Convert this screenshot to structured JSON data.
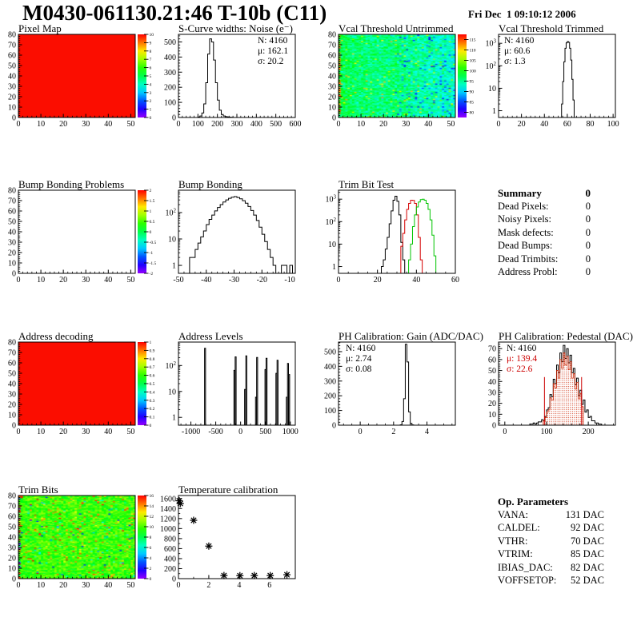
{
  "header": {
    "title": "M0430-061130.21:46 T-10b (C11)",
    "timestamp": "Fri Dec  1 09:10:12 2006"
  },
  "summary": {
    "title": "Summary",
    "total": "0",
    "rows": [
      {
        "label": "Dead Pixels:",
        "value": "0"
      },
      {
        "label": "Noisy Pixels:",
        "value": "0"
      },
      {
        "label": "Mask defects:",
        "value": "0"
      },
      {
        "label": "Dead Bumps:",
        "value": "0"
      },
      {
        "label": "Dead Trimbits:",
        "value": "0"
      },
      {
        "label": "Address Probl:",
        "value": "0"
      }
    ]
  },
  "op_parameters": {
    "title": "Op. Parameters",
    "rows": [
      {
        "label": "VANA:",
        "value": "131 DAC"
      },
      {
        "label": "CALDEL:",
        "value": "92 DAC"
      },
      {
        "label": "VTHR:",
        "value": "70 DAC"
      },
      {
        "label": "VTRIM:",
        "value": "85 DAC"
      },
      {
        "label": "IBIAS_DAC:",
        "value": "82 DAC"
      },
      {
        "label": "VOFFSETOP:",
        "value": "52 DAC"
      }
    ]
  },
  "chart_data": [
    {
      "title": "Pixel Map",
      "pos": {
        "x": 0,
        "y": 30
      },
      "type": "heatmap",
      "plot": {
        "xmin": 0,
        "xmax": 52,
        "ymin": 0,
        "ymax": 80,
        "xticks": [
          0,
          10,
          20,
          30,
          40,
          50
        ],
        "xminor": 2,
        "yticks": [
          0,
          10,
          20,
          30,
          40,
          50,
          60,
          70,
          80
        ],
        "yminor": 2,
        "heat": {
          "mode": "solid",
          "color": "#fb0d00"
        },
        "colorbar": {
          "min": 0,
          "max": 10,
          "labels": [
            10,
            9,
            8,
            7,
            6,
            5,
            4,
            3,
            2,
            1,
            0
          ]
        }
      }
    },
    {
      "title": "S-Curve widths: Noise (e⁻)",
      "pos": {
        "x": 200,
        "y": 30
      },
      "type": "hist",
      "plot": {
        "xmin": 0,
        "xmax": 600,
        "ymin": 0,
        "ymax": 550,
        "xticks": [
          0,
          100,
          200,
          300,
          400,
          500,
          600
        ],
        "xminor": 20,
        "yticks": [
          0,
          100,
          200,
          300,
          400,
          500
        ],
        "yminor": 20,
        "series": [
          {
            "color": "#000000",
            "x0": 100,
            "binw": 10,
            "values": [
              3,
              10,
              30,
              90,
              230,
              420,
              520,
              500,
              380,
              230,
              115,
              48,
              20,
              10,
              6,
              4,
              2,
              1
            ]
          }
        ],
        "stats": {
          "x": 122,
          "lines": [
            [
              "N: 4160",
              "#000000"
            ],
            [
              "μ: 162.1",
              "#000000"
            ],
            [
              "σ: 20.2",
              "#000000"
            ]
          ]
        }
      }
    },
    {
      "title": "Vcal Threshold Untrimmed",
      "pos": {
        "x": 400,
        "y": 30
      },
      "type": "heatmap",
      "plot": {
        "xmin": 0,
        "xmax": 52,
        "ymin": 0,
        "ymax": 80,
        "xticks": [
          0,
          10,
          20,
          30,
          40,
          50
        ],
        "xminor": 2,
        "yticks": [
          0,
          10,
          20,
          30,
          40,
          50,
          60,
          70,
          80
        ],
        "yminor": 2,
        "heat": {
          "mode": "noise",
          "kind": "vcal",
          "seed": 20061201,
          "vmin": 77,
          "vmax": 118
        },
        "colorbar": {
          "min": 77.5,
          "max": 117.5,
          "labels": [
            115,
            110,
            105,
            100,
            95,
            90,
            85,
            80
          ]
        }
      }
    },
    {
      "title": "Vcal Threshold Trimmed",
      "pos": {
        "x": 600,
        "y": 30
      },
      "type": "hist",
      "plot": {
        "xmin": 0,
        "xmax": 102,
        "ylog": true,
        "ymin": 0.5,
        "ymax": 2500,
        "xticks": [
          0,
          20,
          40,
          60,
          80,
          100
        ],
        "xminor": 4,
        "series": [
          {
            "color": "#000000",
            "x0": 55,
            "binw": 1,
            "values": [
              2,
              20,
              150,
              600,
              1050,
              1200,
              1100,
              600,
              180,
              25,
              3
            ]
          }
        ],
        "stats": {
          "x": 30,
          "lines": [
            [
              "N: 4160",
              "#000000"
            ],
            [
              "μ: 60.6",
              "#000000"
            ],
            [
              "σ: 1.3",
              "#000000"
            ]
          ]
        }
      }
    },
    {
      "title": "Bump Bonding Problems",
      "pos": {
        "x": 0,
        "y": 225
      },
      "type": "heatmap",
      "plot": {
        "xmin": 0,
        "xmax": 52,
        "ymin": 0,
        "ymax": 80,
        "xticks": [
          0,
          10,
          20,
          30,
          40,
          50
        ],
        "xminor": 2,
        "yticks": [
          0,
          10,
          20,
          30,
          40,
          50,
          60,
          70,
          80
        ],
        "yminor": 2,
        "heat": {
          "mode": "empty"
        },
        "colorbar": {
          "min": -2,
          "max": 2,
          "labels": [
            2,
            1.5,
            1,
            0.5,
            0,
            -0.5,
            -1,
            -1.5,
            -2
          ]
        }
      }
    },
    {
      "title": "Bump Bonding",
      "pos": {
        "x": 200,
        "y": 225
      },
      "type": "hist",
      "plot": {
        "xmin": -50,
        "xmax": -8,
        "ylog": true,
        "ymin": 0.5,
        "ymax": 700,
        "xticks": [
          -50,
          -40,
          -30,
          -20,
          -10
        ],
        "xminor": 2,
        "series": [
          {
            "color": "#000000",
            "x0": -46,
            "binw": 1,
            "values": [
              2,
              2,
              4,
              7,
              12,
              20,
              35,
              55,
              80,
              115,
              155,
              200,
              250,
              300,
              345,
              380,
              400,
              370,
              330,
              280,
              225,
              170,
              120,
              80,
              50,
              28,
              15,
              8,
              4,
              2,
              1,
              0,
              0,
              1,
              1,
              0,
              1
            ]
          }
        ]
      }
    },
    {
      "title": "Trim Bit Test",
      "pos": {
        "x": 400,
        "y": 225
      },
      "type": "hist",
      "plot": {
        "xmin": 0,
        "xmax": 60,
        "ylog": true,
        "ymin": 0.5,
        "ymax": 2500,
        "xticks": [
          0,
          20,
          40,
          60
        ],
        "xminor": 5,
        "series": [
          {
            "color": "#000000",
            "x0": 22,
            "binw": 1,
            "values": [
              1,
              2,
              6,
              20,
              80,
              300,
              900,
              1350,
              800,
              200,
              12,
              2
            ]
          },
          {
            "color": "#d40000",
            "x0": 32,
            "binw": 1,
            "values": [
              8,
              30,
              120,
              350,
              650,
              900,
              880,
              650,
              200,
              20,
              2
            ]
          },
          {
            "color": "#00c400",
            "x0": 36,
            "binw": 1,
            "values": [
              2,
              10,
              60,
              200,
              450,
              750,
              950,
              1000,
              900,
              650,
              350,
              120,
              25,
              3
            ]
          }
        ]
      }
    },
    {
      "title": "Address decoding",
      "pos": {
        "x": 0,
        "y": 415
      },
      "type": "heatmap",
      "plot": {
        "xmin": 0,
        "xmax": 52,
        "ymin": 0,
        "ymax": 80,
        "xticks": [
          0,
          10,
          20,
          30,
          40,
          50
        ],
        "xminor": 2,
        "yticks": [
          0,
          10,
          20,
          30,
          40,
          50,
          60,
          70,
          80
        ],
        "yminor": 2,
        "heat": {
          "mode": "solid",
          "color": "#fb0d00"
        },
        "colorbar": {
          "min": 0,
          "max": 1,
          "labels": [
            1,
            0.9,
            0.8,
            0.7,
            0.6,
            0.5,
            0.4,
            0.3,
            0.2,
            0.1,
            0
          ]
        }
      }
    },
    {
      "title": "Address Levels",
      "pos": {
        "x": 200,
        "y": 415
      },
      "type": "hist",
      "plot": {
        "xmin": -1250,
        "xmax": 1100,
        "ylog": true,
        "ymin": 0.5,
        "ymax": 800,
        "xticks": [
          -1000,
          -500,
          0,
          500,
          1000
        ],
        "xminor": 100,
        "series": [
          {
            "color": "#000000",
            "binw": 20,
            "bars": [
              [
                -725,
                460
              ],
              [
                -135,
                65
              ],
              [
                -110,
                215
              ],
              [
                80,
                12
              ],
              [
                105,
                235
              ],
              [
                300,
                6
              ],
              [
                322,
                205
              ],
              [
                490,
                70
              ],
              [
                512,
                190
              ],
              [
                710,
                50
              ],
              [
                733,
                160
              ],
              [
                920,
                6
              ],
              [
                943,
                120
              ],
              [
                966,
                45
              ]
            ]
          }
        ]
      }
    },
    {
      "title": "PH Calibration: Gain (ADC/DAC)",
      "pos": {
        "x": 400,
        "y": 415
      },
      "type": "hist",
      "plot": {
        "xmin": -1.3,
        "xmax": 5.7,
        "ymin": 0,
        "ymax": 565,
        "xticks": [
          0,
          2,
          4
        ],
        "xminor": 0.5,
        "yticks": [
          0,
          100,
          200,
          300,
          400,
          500
        ],
        "yminor": 20,
        "series": [
          {
            "color": "#000000",
            "x0": 2.4,
            "binw": 0.1,
            "values": [
              3,
              25,
              180,
              550,
              430,
              90,
              12,
              2
            ]
          }
        ],
        "stats": {
          "x": 32,
          "lines": [
            [
              "N: 4160",
              "#000000"
            ],
            [
              "μ: 2.74",
              "#000000"
            ],
            [
              "σ: 0.08",
              "#000000"
            ]
          ]
        }
      }
    },
    {
      "title": "PH Calibration: Pedestal (DAC)",
      "pos": {
        "x": 600,
        "y": 415
      },
      "type": "hist",
      "plot": {
        "xmin": -15,
        "xmax": 265,
        "ymin": 0,
        "ymax": 76,
        "xticks": [
          0,
          100,
          200
        ],
        "xminor": 20,
        "yticks": [
          0,
          10,
          20,
          30,
          40,
          50,
          60,
          70
        ],
        "yminor": 2,
        "series": [
          {
            "color": "#000000",
            "x0": 60,
            "binw": 4,
            "values": [
              1,
              1,
              2,
              1,
              2,
              3,
              3,
              5,
              4,
              8,
              14,
              16,
              28,
              26,
              42,
              38,
              55,
              48,
              66,
              58,
              73,
              61,
              70,
              57,
              64,
              48,
              52,
              37,
              43,
              27,
              32,
              19,
              23,
              12,
              14,
              7,
              8,
              4,
              4,
              2,
              2,
              1,
              1
            ]
          },
          {
            "color": "#cc2200",
            "fill": "dots",
            "x0": 92,
            "binw": 4,
            "values": [
              4,
              7,
              12,
              14,
              25,
              23,
              38,
              34,
              50,
              43,
              60,
              52,
              66,
              55,
              63,
              51,
              58,
              43,
              47,
              33,
              39,
              24,
              29,
              17
            ]
          }
        ],
        "redlines": [
          [
            95,
            44
          ],
          [
            184,
            44
          ]
        ],
        "stats": {
          "x": 33,
          "lines": [
            [
              "N: 4160",
              "#000000"
            ],
            [
              "μ: 139.4",
              "#cc0000"
            ],
            [
              "σ: 22.6",
              "#cc0000"
            ]
          ]
        }
      }
    },
    {
      "title": "Trim Bits",
      "pos": {
        "x": 0,
        "y": 607
      },
      "type": "heatmap",
      "plot": {
        "xmin": 0,
        "xmax": 52,
        "ymin": 0,
        "ymax": 80,
        "xticks": [
          0,
          10,
          20,
          30,
          40,
          50
        ],
        "xminor": 2,
        "yticks": [
          0,
          10,
          20,
          30,
          40,
          50,
          60,
          70,
          80
        ],
        "yminor": 2,
        "heat": {
          "mode": "noise",
          "kind": "trim",
          "seed": 430,
          "vmin": 0,
          "vmax": 16
        },
        "colorbar": {
          "min": 0,
          "max": 16,
          "labels": [
            16,
            14,
            12,
            10,
            8,
            6,
            4,
            2,
            0
          ]
        }
      }
    },
    {
      "title": "Temperature calibration",
      "pos": {
        "x": 200,
        "y": 607
      },
      "type": "scatter",
      "plot": {
        "xmin": 0,
        "xmax": 7.7,
        "ymin": 0,
        "ymax": 1660,
        "xticks": [
          0,
          2,
          4,
          6
        ],
        "xminor": 1,
        "yticks": [
          0,
          200,
          400,
          600,
          800,
          1000,
          1200,
          1400,
          1600
        ],
        "yminor": 100,
        "points": [
          [
            0.05,
            1555
          ],
          [
            0.12,
            1500
          ],
          [
            1.0,
            1165
          ],
          [
            2.0,
            650
          ],
          [
            3.0,
            62
          ],
          [
            4.05,
            60
          ],
          [
            5.0,
            62
          ],
          [
            6.05,
            62
          ],
          [
            7.15,
            78
          ]
        ],
        "marker": {
          "color": "#000000",
          "size": 4.5
        }
      }
    }
  ]
}
